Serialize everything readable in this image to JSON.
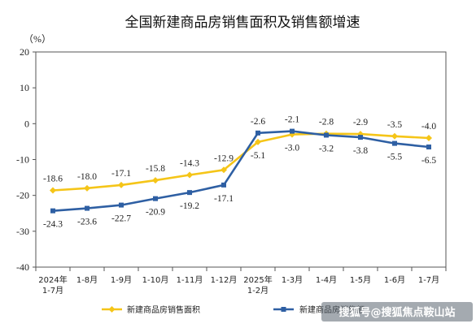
{
  "chart_data": {
    "type": "line",
    "title": "全国新建商品房销售面积及销售额增速",
    "y_unit": "（%）",
    "ylim": [
      -40,
      20
    ],
    "yticks": [
      "20",
      "10",
      "0",
      "-10",
      "-20",
      "-30",
      "-40"
    ],
    "ytick_values": [
      20,
      10,
      0,
      -10,
      -20,
      -30,
      -40
    ],
    "grid": false,
    "legend_position": "bottom",
    "categories": [
      [
        "2024年",
        "1-7月"
      ],
      [
        "1-8月"
      ],
      [
        "1-9月"
      ],
      [
        "1-10月"
      ],
      [
        "1-11月"
      ],
      [
        "1-12月"
      ],
      [
        "2025年",
        "1-2月"
      ],
      [
        "1-3月"
      ],
      [
        "1-4月"
      ],
      [
        "1-5月"
      ],
      [
        "1-6月"
      ],
      [
        "1-7月"
      ]
    ],
    "series": [
      {
        "name": "新建商品房销售面积",
        "color": "#f5c518",
        "marker": "diamond",
        "values": [
          -18.6,
          -18.0,
          -17.1,
          -15.8,
          -14.3,
          -12.9,
          -5.1,
          -3.0,
          -2.8,
          -2.9,
          -3.5,
          -4.0
        ],
        "labels": [
          "-18.6",
          "-18.0",
          "-17.1",
          "-15.8",
          "-14.3",
          "-12.9",
          "-5.1",
          "-3.0",
          "-2.8",
          "-2.9",
          "-3.5",
          "-4.0"
        ],
        "label_pos": [
          "above",
          "above",
          "above",
          "above",
          "above",
          "above",
          "below",
          "below",
          "above",
          "above",
          "above",
          "above"
        ]
      },
      {
        "name": "新建商品房销售额",
        "color": "#2e5fa3",
        "marker": "square",
        "values": [
          -24.3,
          -23.6,
          -22.7,
          -20.9,
          -19.2,
          -17.1,
          -2.6,
          -2.1,
          -3.2,
          -3.8,
          -5.5,
          -6.5
        ],
        "labels": [
          "-24.3",
          "-23.6",
          "-22.7",
          "-20.9",
          "-19.2",
          "-17.1",
          "-2.6",
          "-2.1",
          "-3.2",
          "-3.8",
          "-5.5",
          "-6.5"
        ],
        "label_pos": [
          "below",
          "below",
          "below",
          "below",
          "below",
          "below",
          "above",
          "above",
          "below",
          "below",
          "below",
          "below"
        ]
      }
    ]
  },
  "legend": {
    "item1": "新建商品房销售面积",
    "item2": "新建商品房销售额"
  },
  "watermark": "搜狐号@搜狐焦点鞍山站"
}
